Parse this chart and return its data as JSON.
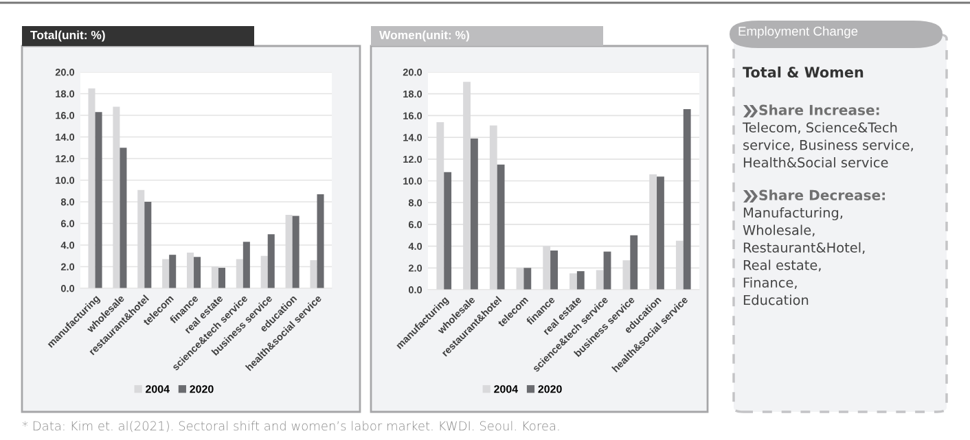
{
  "chart_data": [
    {
      "type": "bar",
      "title": "Total(unit: %)",
      "categories": [
        "manufacturing",
        "wholesale",
        "restaurant&hotel",
        "telecom",
        "finance",
        "real estate",
        "science&tech service",
        "business service",
        "education",
        "health&social service"
      ],
      "series": [
        {
          "name": "2004",
          "color": "#d9d9db",
          "values": [
            18.5,
            16.8,
            9.1,
            2.7,
            3.3,
            2.0,
            2.7,
            3.0,
            6.8,
            2.6
          ]
        },
        {
          "name": "2020",
          "color": "#6a6b6f",
          "values": [
            16.3,
            13.0,
            8.0,
            3.1,
            2.9,
            1.9,
            4.3,
            5.0,
            6.7,
            8.7
          ]
        }
      ],
      "ylim": [
        0,
        20
      ],
      "yticks": [
        {
          "value": 0,
          "label": "0.0"
        },
        {
          "value": 2,
          "label": "2.0"
        },
        {
          "value": 4,
          "label": "4.0"
        },
        {
          "value": 6,
          "label": "6.0"
        },
        {
          "value": 8,
          "label": "8.0"
        },
        {
          "value": 10,
          "label": "10.0"
        },
        {
          "value": 12,
          "label": "12.0"
        },
        {
          "value": 14,
          "label": "14.0"
        },
        {
          "value": 16,
          "label": "16.0"
        },
        {
          "value": 18,
          "label": "18.0"
        },
        {
          "value": 20,
          "label": "20.0"
        }
      ],
      "grid": "y",
      "legend": "bottom",
      "annotations": [
        "* Data: Kim et. al(2021). Sectoral shift and women’s labor market. KWDI. Seoul. Korea."
      ]
    },
    {
      "type": "bar",
      "title": "Women(unit: %)",
      "categories": [
        "manufacturing",
        "wholesale",
        "restaurant&hotel",
        "telecom",
        "finance",
        "real estate",
        "science&tech service",
        "business service",
        "education",
        "health&social service"
      ],
      "series": [
        {
          "name": "2004",
          "color": "#d9d9db",
          "values": [
            15.4,
            19.1,
            15.1,
            2.0,
            4.0,
            1.5,
            1.8,
            2.7,
            10.6,
            4.5
          ]
        },
        {
          "name": "2020",
          "color": "#6a6b6f",
          "values": [
            10.8,
            13.9,
            11.5,
            2.0,
            3.6,
            1.7,
            3.5,
            5.0,
            10.4,
            16.6
          ]
        }
      ],
      "ylim": [
        0,
        20
      ],
      "yticks": [
        {
          "value": 0,
          "label": "0.0"
        },
        {
          "value": 2,
          "label": "2.0"
        },
        {
          "value": 4,
          "label": "4.0"
        },
        {
          "value": 6,
          "label": "6.0"
        },
        {
          "value": 8,
          "label": "8.0"
        },
        {
          "value": 10,
          "label": "10.0"
        },
        {
          "value": 12,
          "label": "12.0"
        },
        {
          "value": 14,
          "label": "14.0"
        },
        {
          "value": 16,
          "label": "16.0"
        },
        {
          "value": 18,
          "label": "18.0"
        },
        {
          "value": 20,
          "label": "20.0"
        }
      ],
      "grid": "y",
      "legend": "bottom"
    },
    {
      "type": "other",
      "title": "Employment Change",
      "subtitle": "Total & Women",
      "annotations": [
        "Share Increase:",
        "Telecom, Science&Tech\nservice, Business service,\nHealth&Social service",
        "Share Decrease:",
        "Manufacturing,\nWholesale,\nRestaurant&Hotel,\nReal estate,\nFinance,\nEducation"
      ]
    }
  ]
}
